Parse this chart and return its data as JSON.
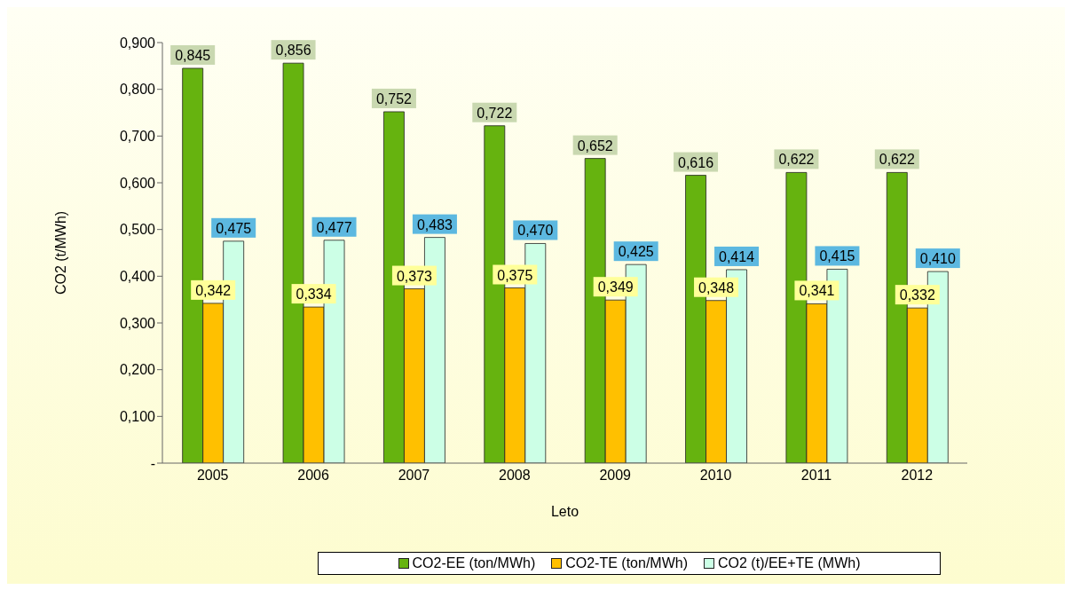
{
  "chart_data": {
    "type": "bar",
    "xlabel": "Leto",
    "ylabel": "CO2 (t/MWh)",
    "categories": [
      "2005",
      "2006",
      "2007",
      "2008",
      "2009",
      "2010",
      "2011",
      "2012"
    ],
    "series": [
      {
        "name": "CO2-EE (ton/MWh)",
        "color": "#66b30f",
        "values": [
          0.845,
          0.856,
          0.752,
          0.722,
          0.652,
          0.616,
          0.622,
          0.622
        ],
        "value_labels": [
          "0,845",
          "0,856",
          "0,752",
          "0,722",
          "0,652",
          "0,616",
          "0,622",
          "0,622"
        ]
      },
      {
        "name": "CO2-TE (ton/MWh)",
        "color": "#ffc000",
        "values": [
          0.342,
          0.334,
          0.373,
          0.375,
          0.349,
          0.348,
          0.341,
          0.332
        ],
        "value_labels": [
          "0,342",
          "0,334",
          "0,373",
          "0,375",
          "0,349",
          "0,348",
          "0,341",
          "0,332"
        ]
      },
      {
        "name": "CO2 (t)/EE+TE (MWh)",
        "color": "#ccffe6",
        "values": [
          0.475,
          0.477,
          0.483,
          0.47,
          0.425,
          0.414,
          0.415,
          0.41
        ],
        "value_labels": [
          "0,475",
          "0,477",
          "0,483",
          "0,470",
          "0,425",
          "0,414",
          "0,415",
          "0,410"
        ]
      }
    ],
    "ylim": [
      0,
      0.9
    ],
    "yticks": [
      {
        "value": 0,
        "label": "-"
      },
      {
        "value": 0.1,
        "label": "0,100"
      },
      {
        "value": 0.2,
        "label": "0,200"
      },
      {
        "value": 0.3,
        "label": "0,300"
      },
      {
        "value": 0.4,
        "label": "0,400"
      },
      {
        "value": 0.5,
        "label": "0,500"
      },
      {
        "value": 0.6,
        "label": "0,600"
      },
      {
        "value": 0.7,
        "label": "0,700"
      },
      {
        "value": 0.8,
        "label": "0,800"
      },
      {
        "value": 0.9,
        "label": "0,900"
      }
    ],
    "grid": false,
    "legend": "bottom"
  }
}
